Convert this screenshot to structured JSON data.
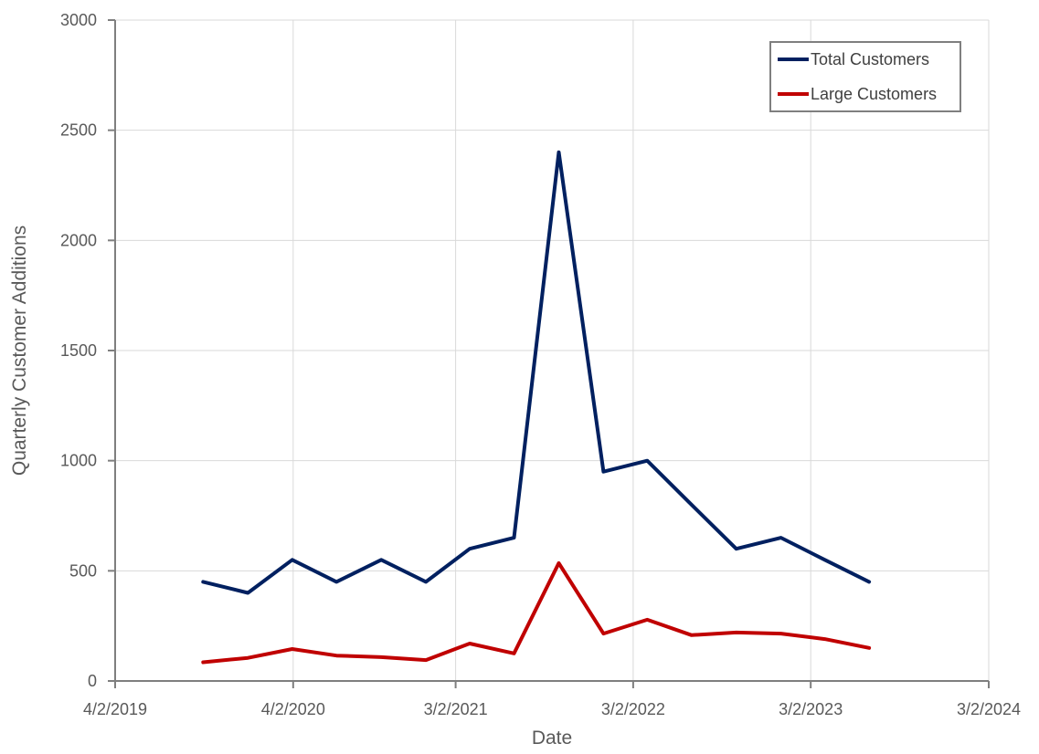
{
  "chart_data": {
    "type": "line",
    "title": "",
    "xlabel": "Date",
    "ylabel": "Quarterly Customer Additions",
    "x_axis": {
      "kind": "date",
      "ticks": [
        "2019-04-02",
        "2020-04-02",
        "2021-03-02",
        "2022-03-02",
        "2023-03-02",
        "2024-03-02"
      ],
      "tick_labels": [
        "4/2/2019",
        "4/2/2020",
        "3/2/2021",
        "3/2/2022",
        "3/2/2023",
        "3/2/2024"
      ]
    },
    "ylim": [
      0,
      3000
    ],
    "y_ticks": [
      0,
      500,
      1000,
      1500,
      2000,
      2500,
      3000
    ],
    "grid": true,
    "legend_position": "top-right",
    "x": [
      "2019-09-30",
      "2019-12-31",
      "2020-03-31",
      "2020-06-30",
      "2020-09-30",
      "2020-12-31",
      "2021-03-31",
      "2021-06-30",
      "2021-09-30",
      "2021-12-31",
      "2022-03-31",
      "2022-06-30",
      "2022-09-30",
      "2022-12-31",
      "2023-03-31",
      "2023-06-30"
    ],
    "series": [
      {
        "name": "Total Customers",
        "color": "#002060",
        "values": [
          450,
          400,
          550,
          450,
          550,
          450,
          600,
          650,
          2400,
          950,
          1000,
          800,
          600,
          650,
          550,
          450
        ]
      },
      {
        "name": "Large Customers",
        "color": "#C00000",
        "values": [
          85,
          105,
          145,
          115,
          108,
          95,
          170,
          125,
          535,
          215,
          278,
          208,
          220,
          215,
          190,
          150
        ]
      }
    ]
  }
}
